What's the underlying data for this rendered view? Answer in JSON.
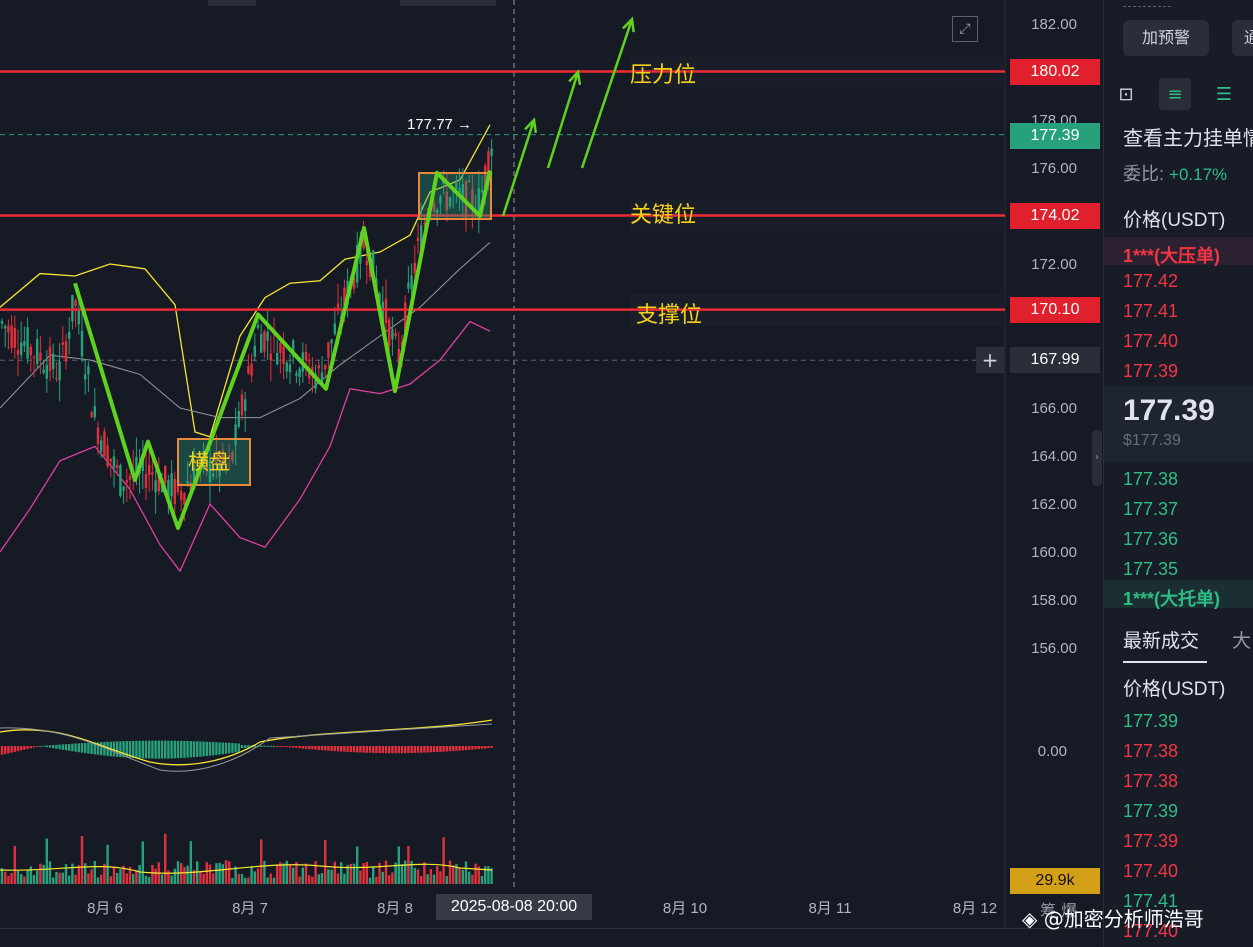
{
  "chart_data": {
    "type": "candlestick",
    "y_axis": {
      "min": 156,
      "max": 182,
      "ticks": [
        "182.00",
        "178.00",
        "176.00",
        "172.00",
        "166.00",
        "164.00",
        "162.00",
        "160.00",
        "158.00",
        "156.00"
      ]
    },
    "x_axis_labels": [
      "8月 6",
      "8月 7",
      "8月 8",
      "8月 10",
      "8月 11",
      "8月 12"
    ],
    "crosshair_time": "2025-08-08 20:00",
    "crosshair_price": "167.99",
    "high_marker": "177.77",
    "horizontal_levels": [
      {
        "label": "压力位",
        "price": 180.02,
        "tag": "180.02"
      },
      {
        "label": "关键位",
        "price": 174.02,
        "tag": "174.02"
      },
      {
        "label": "支撑位",
        "price": 170.1,
        "tag": "170.10"
      }
    ],
    "current_price": "177.39",
    "consolidation_label": "横盘",
    "macd_zero_label": "0.00",
    "volume_label": "29.9k",
    "zigzag_prices": [
      171.2,
      163.0,
      164.6,
      161.0,
      169.9,
      166.8,
      173.5,
      166.7,
      175.8,
      174.0,
      175.9
    ],
    "projection_prices": [
      174.0,
      178.0,
      176.0,
      180.0,
      176.0,
      182.2
    ]
  },
  "annotations": {
    "pressure": "压力位",
    "key": "关键位",
    "support": "支撑位",
    "consolidation": "横盘"
  },
  "bottom_labels": {
    "left": "8月 6",
    "date_badge": "2025-08-08 20:00",
    "right_partial": "筹 爆"
  },
  "sidebar": {
    "alert_button": "加预警",
    "second_button": "通",
    "order_book_title": "查看主力挂单情",
    "ratio_label": "委比:",
    "ratio_value": "+0.17%",
    "price_header": "价格(USDT)",
    "big_ask": "1***(大压单)",
    "asks": [
      "177.42",
      "177.41",
      "177.40",
      "177.39"
    ],
    "last_price": "177.39",
    "last_price_usd": "$177.39",
    "bids": [
      "177.38",
      "177.37",
      "177.36",
      "177.35"
    ],
    "big_bid": "1***(大托单)",
    "trades_tab": "最新成交",
    "trades_tab_2": "大",
    "trades_price_header": "价格(USDT)",
    "trades": [
      {
        "price": "177.39",
        "side": "buy"
      },
      {
        "price": "177.38",
        "side": "sell"
      },
      {
        "price": "177.38",
        "side": "sell"
      },
      {
        "price": "177.39",
        "side": "buy"
      },
      {
        "price": "177.39",
        "side": "sell"
      },
      {
        "price": "177.40",
        "side": "sell"
      },
      {
        "price": "177.41",
        "side": "buy"
      },
      {
        "price": "177.40",
        "side": "sell"
      }
    ]
  },
  "watermark": "@加密分析师浩哥",
  "colors": {
    "bg": "#161a25",
    "red": "#f23645",
    "green": "#2ebd85",
    "yellow": "#f7d21b",
    "zigzag": "#5fd21f",
    "tag_current": "#26a17b",
    "tag_volume": "#d4a017"
  }
}
